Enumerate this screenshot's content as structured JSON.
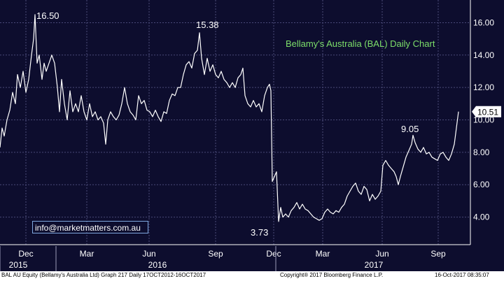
{
  "chart_data": {
    "type": "line",
    "title": "Bellamy's Australia (BAL) Daily Chart",
    "xlabel": "",
    "ylabel": "",
    "ylim": [
      2.3,
      17.4
    ],
    "yticks": [
      "4.00",
      "6.00",
      "8.00",
      "10.00",
      "12.00",
      "14.00",
      "16.00"
    ],
    "ytick_values": [
      4,
      6,
      8,
      10,
      12,
      14,
      16
    ],
    "month_labels": [
      "Dec",
      "Mar",
      "Jun",
      "Sep",
      "Dec",
      "Mar",
      "Jun",
      "Sep"
    ],
    "year_labels": [
      "2015",
      "2016",
      "2017"
    ],
    "last_value_label": "10.51",
    "annotations": [
      "16.50",
      "15.38",
      "3.73",
      "9.05"
    ],
    "series": [
      {
        "values": [
          [
            0,
            8.3
          ],
          [
            3,
            9.5
          ],
          [
            6,
            9.0
          ],
          [
            10,
            10.0
          ],
          [
            14,
            10.6
          ],
          [
            18,
            11.7
          ],
          [
            22,
            11.0
          ],
          [
            25,
            12.8
          ],
          [
            29,
            12.0
          ],
          [
            33,
            13.0
          ],
          [
            37,
            11.7
          ],
          [
            41,
            12.5
          ],
          [
            45,
            14.0
          ],
          [
            48,
            15.0
          ],
          [
            50,
            16.5
          ],
          [
            53,
            13.5
          ],
          [
            56,
            14.0
          ],
          [
            60,
            12.5
          ],
          [
            63,
            13.5
          ],
          [
            66,
            13.0
          ],
          [
            70,
            13.5
          ],
          [
            74,
            14.0
          ],
          [
            78,
            13.5
          ],
          [
            82,
            12.0
          ],
          [
            85,
            10.5
          ],
          [
            88,
            12.5
          ],
          [
            92,
            11.0
          ],
          [
            96,
            10.0
          ],
          [
            100,
            11.8
          ],
          [
            104,
            10.5
          ],
          [
            108,
            11.0
          ],
          [
            112,
            10.5
          ],
          [
            116,
            11.5
          ],
          [
            120,
            10.5
          ],
          [
            124,
            10.0
          ],
          [
            128,
            11.0
          ],
          [
            132,
            10.2
          ],
          [
            136,
            10.5
          ],
          [
            140,
            10.0
          ],
          [
            144,
            10.2
          ],
          [
            148,
            9.8
          ],
          [
            151,
            8.5
          ],
          [
            154,
            10.0
          ],
          [
            158,
            10.5
          ],
          [
            162,
            10.2
          ],
          [
            166,
            10.0
          ],
          [
            170,
            10.3
          ],
          [
            174,
            11.0
          ],
          [
            178,
            12.0
          ],
          [
            182,
            11.0
          ],
          [
            186,
            10.5
          ],
          [
            190,
            10.3
          ],
          [
            194,
            10.0
          ],
          [
            198,
            11.5
          ],
          [
            202,
            11.0
          ],
          [
            206,
            11.2
          ],
          [
            210,
            10.6
          ],
          [
            214,
            10.5
          ],
          [
            218,
            10.2
          ],
          [
            222,
            10.6
          ],
          [
            226,
            10.2
          ],
          [
            230,
            9.9
          ],
          [
            234,
            10.5
          ],
          [
            238,
            10.4
          ],
          [
            242,
            11.2
          ],
          [
            246,
            11.6
          ],
          [
            250,
            11.5
          ],
          [
            254,
            12.0
          ],
          [
            258,
            12.0
          ],
          [
            262,
            12.8
          ],
          [
            266,
            13.4
          ],
          [
            270,
            13.6
          ],
          [
            274,
            13.2
          ],
          [
            278,
            14.1
          ],
          [
            282,
            14.3
          ],
          [
            285,
            15.38
          ],
          [
            288,
            13.8
          ],
          [
            292,
            12.8
          ],
          [
            296,
            13.8
          ],
          [
            300,
            13.0
          ],
          [
            304,
            13.4
          ],
          [
            308,
            12.8
          ],
          [
            312,
            12.6
          ],
          [
            316,
            13.0
          ],
          [
            320,
            12.5
          ],
          [
            324,
            12.3
          ],
          [
            328,
            12.0
          ],
          [
            332,
            12.3
          ],
          [
            336,
            12.0
          ],
          [
            340,
            12.6
          ],
          [
            344,
            12.8
          ],
          [
            347,
            13.2
          ],
          [
            350,
            11.5
          ],
          [
            354,
            11.0
          ],
          [
            358,
            10.8
          ],
          [
            362,
            11.2
          ],
          [
            366,
            10.8
          ],
          [
            370,
            11.0
          ],
          [
            374,
            10.5
          ],
          [
            378,
            11.5
          ],
          [
            382,
            12.0
          ],
          [
            385,
            12.2
          ],
          [
            387,
            11.8
          ],
          [
            389,
            6.2
          ],
          [
            392,
            6.5
          ],
          [
            395,
            6.8
          ],
          [
            398,
            3.73
          ],
          [
            401,
            4.6
          ],
          [
            404,
            4.0
          ],
          [
            408,
            4.2
          ],
          [
            412,
            4.0
          ],
          [
            416,
            4.4
          ],
          [
            420,
            4.6
          ],
          [
            424,
            4.9
          ],
          [
            428,
            4.5
          ],
          [
            432,
            4.8
          ],
          [
            436,
            4.5
          ],
          [
            440,
            4.4
          ],
          [
            444,
            4.2
          ],
          [
            448,
            4.0
          ],
          [
            452,
            3.9
          ],
          [
            456,
            3.8
          ],
          [
            460,
            3.9
          ],
          [
            464,
            4.3
          ],
          [
            468,
            4.5
          ],
          [
            472,
            4.3
          ],
          [
            476,
            4.2
          ],
          [
            480,
            4.4
          ],
          [
            484,
            4.3
          ],
          [
            488,
            4.6
          ],
          [
            492,
            4.8
          ],
          [
            496,
            5.3
          ],
          [
            500,
            5.6
          ],
          [
            504,
            5.9
          ],
          [
            508,
            6.1
          ],
          [
            512,
            5.6
          ],
          [
            516,
            5.4
          ],
          [
            520,
            5.9
          ],
          [
            524,
            5.7
          ],
          [
            528,
            5.0
          ],
          [
            532,
            5.4
          ],
          [
            536,
            5.1
          ],
          [
            540,
            5.3
          ],
          [
            544,
            5.6
          ],
          [
            547,
            7.2
          ],
          [
            551,
            7.5
          ],
          [
            555,
            7.2
          ],
          [
            559,
            7.0
          ],
          [
            563,
            6.8
          ],
          [
            566,
            6.5
          ],
          [
            569,
            6.0
          ],
          [
            572,
            6.5
          ],
          [
            576,
            7.1
          ],
          [
            580,
            7.7
          ],
          [
            584,
            8.1
          ],
          [
            588,
            8.5
          ],
          [
            590,
            9.05
          ],
          [
            593,
            8.6
          ],
          [
            597,
            8.2
          ],
          [
            601,
            8.0
          ],
          [
            605,
            8.3
          ],
          [
            609,
            7.9
          ],
          [
            613,
            8.0
          ],
          [
            617,
            7.7
          ],
          [
            621,
            7.6
          ],
          [
            625,
            7.5
          ],
          [
            629,
            7.9
          ],
          [
            633,
            8.0
          ],
          [
            637,
            7.7
          ],
          [
            641,
            7.5
          ],
          [
            645,
            7.9
          ],
          [
            649,
            8.5
          ],
          [
            652,
            9.5
          ],
          [
            655,
            10.51
          ]
        ]
      }
    ]
  },
  "email": "info@marketmatters.com.au",
  "footer": {
    "left": "BAL AU Equity (Bellamy's Australia Ltd) Graph 217  Daily 17OCT2012-16OCT2017",
    "center": "Copyright® 2017 Bloomberg Finance L.P.",
    "right": "16-Oct-2017 08:35:07"
  }
}
